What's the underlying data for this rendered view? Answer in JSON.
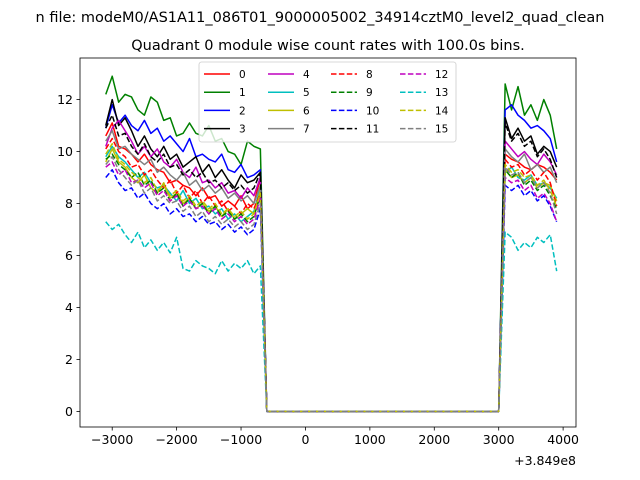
{
  "chart_data": {
    "type": "line",
    "suptitle": "n file: modeM0/AS1A11_086T01_9000005002_34914cztM0_level2_quad_clean",
    "title": "Quadrant 0 module wise count rates with 100.0s bins.",
    "xlabel": "",
    "ylabel": "",
    "x_offset_label": "+3.849e8",
    "xlim": [
      -3500,
      4200
    ],
    "ylim": [
      -0.6,
      13.6
    ],
    "xticks": [
      -3000,
      -2000,
      -1000,
      0,
      1000,
      2000,
      3000,
      4000
    ],
    "xtick_labels": [
      "−3000",
      "−2000",
      "−1000",
      "0",
      "1000",
      "2000",
      "3000",
      "4000"
    ],
    "yticks": [
      0,
      2,
      4,
      6,
      8,
      10,
      12
    ],
    "ytick_labels": [
      "0",
      "2",
      "4",
      "6",
      "8",
      "10",
      "12"
    ],
    "legend_position": "upper center",
    "x": [
      -3100,
      -3000,
      -2900,
      -2800,
      -2700,
      -2600,
      -2500,
      -2400,
      -2300,
      -2200,
      -2100,
      -2000,
      -1900,
      -1800,
      -1700,
      -1600,
      -1500,
      -1400,
      -1300,
      -1200,
      -1100,
      -1000,
      -900,
      -800,
      -700,
      -600,
      -500,
      3000,
      3100,
      3200,
      3300,
      3400,
      3500,
      3600,
      3700,
      3800,
      3900
    ],
    "series": [
      {
        "name": "0",
        "color": "#ff0000",
        "dash": "solid",
        "values": [
          10.6,
          11.1,
          10.2,
          10.1,
          9.9,
          9.6,
          9.9,
          9.5,
          9.3,
          9.2,
          8.8,
          8.9,
          8.7,
          8.6,
          8.3,
          8.6,
          8.2,
          8.3,
          7.9,
          8.1,
          7.9,
          8.3,
          7.8,
          8.0,
          9.0,
          0,
          0,
          0,
          9.9,
          9.7,
          9.6,
          9.4,
          9.3,
          9.5,
          9.4,
          9.2,
          8.9
        ]
      },
      {
        "name": "1",
        "color": "#008000",
        "dash": "solid",
        "values": [
          12.2,
          12.9,
          11.9,
          12.2,
          12.1,
          11.6,
          11.4,
          12.1,
          11.9,
          11.2,
          11.3,
          10.6,
          10.7,
          11.1,
          10.7,
          10.6,
          11.0,
          10.4,
          10.5,
          10.0,
          9.9,
          9.5,
          10.4,
          10.2,
          10.1,
          0,
          0,
          0,
          12.6,
          11.6,
          12.5,
          11.4,
          11.8,
          11.2,
          12.0,
          11.4,
          10.1
        ]
      },
      {
        "name": "2",
        "color": "#0000ff",
        "dash": "solid",
        "values": [
          10.9,
          11.8,
          11.1,
          11.4,
          11.0,
          10.8,
          11.2,
          10.7,
          10.9,
          10.4,
          10.6,
          10.3,
          10.0,
          10.5,
          9.8,
          9.9,
          9.7,
          9.6,
          9.9,
          9.3,
          9.2,
          9.5,
          9.0,
          9.1,
          9.3,
          0,
          0,
          0,
          11.6,
          11.8,
          11.4,
          11.2,
          10.9,
          11.0,
          10.8,
          10.5,
          9.6
        ]
      },
      {
        "name": "3",
        "color": "#000000",
        "dash": "solid",
        "values": [
          11.0,
          12.0,
          11.0,
          11.3,
          10.8,
          10.2,
          10.6,
          10.1,
          9.8,
          10.2,
          9.7,
          9.9,
          9.4,
          9.6,
          9.8,
          9.2,
          9.5,
          9.0,
          9.3,
          8.9,
          8.6,
          9.1,
          8.8,
          8.9,
          9.2,
          0,
          0,
          0,
          11.3,
          10.5,
          10.9,
          10.4,
          10.6,
          9.9,
          10.2,
          10.0,
          9.4
        ]
      },
      {
        "name": "4",
        "color": "#bf00bf",
        "dash": "solid",
        "values": [
          10.2,
          10.9,
          11.2,
          10.8,
          10.4,
          9.9,
          10.2,
          9.8,
          10.1,
          9.6,
          9.4,
          9.7,
          9.2,
          9.0,
          9.4,
          8.8,
          8.9,
          8.6,
          8.8,
          8.4,
          8.5,
          8.2,
          8.6,
          8.3,
          9.0,
          0,
          0,
          0,
          10.4,
          10.1,
          9.8,
          10.0,
          9.7,
          9.5,
          9.9,
          9.6,
          9.1
        ]
      },
      {
        "name": "5",
        "color": "#00bfbf",
        "dash": "solid",
        "values": [
          9.8,
          10.2,
          9.8,
          9.6,
          9.3,
          9.0,
          9.2,
          8.8,
          8.6,
          8.7,
          8.4,
          8.1,
          8.5,
          8.0,
          8.2,
          7.8,
          7.9,
          7.6,
          7.8,
          7.4,
          7.6,
          7.3,
          7.5,
          7.7,
          8.6,
          0,
          0,
          0,
          9.2,
          9.4,
          9.0,
          8.9,
          9.1,
          8.7,
          8.8,
          8.6,
          8.2
        ]
      },
      {
        "name": "6",
        "color": "#bfbf00",
        "dash": "solid",
        "values": [
          9.6,
          10.1,
          9.6,
          9.4,
          9.0,
          8.8,
          9.1,
          8.6,
          8.4,
          8.8,
          8.2,
          8.4,
          8.0,
          8.2,
          7.8,
          8.0,
          7.7,
          7.9,
          7.5,
          7.8,
          7.4,
          7.6,
          7.8,
          7.6,
          8.5,
          0,
          0,
          0,
          9.3,
          9.0,
          9.1,
          8.8,
          9.0,
          8.6,
          8.8,
          8.7,
          8.1
        ]
      },
      {
        "name": "7",
        "color": "#808080",
        "dash": "solid",
        "values": [
          10.4,
          10.8,
          10.1,
          10.2,
          9.9,
          9.7,
          9.5,
          9.7,
          9.2,
          9.4,
          9.1,
          8.9,
          9.2,
          8.7,
          8.9,
          8.5,
          8.7,
          8.4,
          8.6,
          8.2,
          8.4,
          8.1,
          8.3,
          8.0,
          8.7,
          0,
          0,
          0,
          10.1,
          9.8,
          9.6,
          9.9,
          9.3,
          9.5,
          9.2,
          9.4,
          8.8
        ]
      },
      {
        "name": "8",
        "color": "#ff0000",
        "dash": "dashed",
        "values": [
          10.1,
          10.5,
          10.0,
          9.8,
          9.4,
          9.5,
          9.1,
          9.3,
          8.9,
          8.6,
          8.9,
          8.4,
          8.7,
          8.2,
          8.5,
          8.0,
          8.3,
          7.9,
          8.1,
          7.7,
          7.9,
          7.6,
          8.0,
          7.8,
          8.4,
          0,
          0,
          0,
          9.7,
          9.4,
          9.5,
          9.1,
          9.3,
          8.9,
          9.2,
          8.8,
          7.9
        ]
      },
      {
        "name": "9",
        "color": "#008000",
        "dash": "dashed",
        "values": [
          9.7,
          9.9,
          9.5,
          9.3,
          9.0,
          9.2,
          8.7,
          8.9,
          8.4,
          8.6,
          8.1,
          8.4,
          7.9,
          8.2,
          7.8,
          8.0,
          7.6,
          7.9,
          7.5,
          7.7,
          7.4,
          7.6,
          7.3,
          7.5,
          8.3,
          0,
          0,
          0,
          9.3,
          9.0,
          9.2,
          8.7,
          8.9,
          8.5,
          8.7,
          8.3,
          7.8
        ]
      },
      {
        "name": "10",
        "color": "#0000ff",
        "dash": "dashed",
        "values": [
          9.0,
          9.3,
          8.8,
          8.5,
          8.6,
          8.2,
          8.4,
          8.0,
          7.8,
          8.0,
          7.6,
          7.8,
          7.5,
          7.6,
          7.3,
          7.5,
          7.2,
          7.3,
          7.0,
          7.2,
          6.9,
          7.1,
          6.8,
          7.0,
          7.8,
          0,
          0,
          0,
          8.7,
          8.5,
          8.7,
          8.3,
          8.5,
          8.1,
          8.3,
          7.9,
          7.3
        ]
      },
      {
        "name": "11",
        "color": "#000000",
        "dash": "dashed",
        "values": [
          10.9,
          11.4,
          10.6,
          10.7,
          10.2,
          9.9,
          10.3,
          9.8,
          9.6,
          9.9,
          9.4,
          9.5,
          9.1,
          9.3,
          9.0,
          9.2,
          8.8,
          8.9,
          8.6,
          8.8,
          8.5,
          8.7,
          8.4,
          8.6,
          9.2,
          0,
          0,
          0,
          11.1,
          10.4,
          10.7,
          10.2,
          10.4,
          9.8,
          10.1,
          9.7,
          9.0
        ]
      },
      {
        "name": "12",
        "color": "#bf00bf",
        "dash": "dashed",
        "values": [
          9.4,
          9.6,
          9.1,
          9.3,
          8.8,
          8.9,
          8.6,
          8.8,
          8.3,
          8.5,
          8.1,
          8.3,
          7.9,
          8.1,
          7.8,
          7.9,
          7.6,
          7.8,
          7.4,
          7.6,
          7.3,
          7.5,
          7.2,
          7.4,
          8.2,
          0,
          0,
          0,
          9.0,
          8.8,
          8.9,
          8.5,
          8.7,
          8.2,
          8.4,
          8.0,
          7.3
        ]
      },
      {
        "name": "13",
        "color": "#00bfbf",
        "dash": "dashed",
        "values": [
          7.3,
          7.0,
          7.2,
          6.8,
          6.5,
          6.9,
          6.3,
          6.6,
          6.2,
          6.5,
          6.1,
          6.7,
          5.5,
          5.4,
          5.8,
          5.6,
          5.5,
          5.3,
          5.8,
          5.4,
          5.7,
          5.5,
          5.8,
          5.3,
          5.6,
          0,
          0,
          0,
          6.9,
          6.7,
          6.2,
          6.5,
          6.3,
          6.7,
          6.5,
          6.8,
          5.4
        ]
      },
      {
        "name": "14",
        "color": "#bfbf00",
        "dash": "dashed",
        "values": [
          9.9,
          10.3,
          9.7,
          9.5,
          9.2,
          9.0,
          8.8,
          9.0,
          8.5,
          8.7,
          8.3,
          8.5,
          8.1,
          8.3,
          7.9,
          8.1,
          7.8,
          8.0,
          7.6,
          7.8,
          7.5,
          7.7,
          7.4,
          7.6,
          8.4,
          0,
          0,
          0,
          9.5,
          9.2,
          9.3,
          9.0,
          9.1,
          8.7,
          8.9,
          8.5,
          7.9
        ]
      },
      {
        "name": "15",
        "color": "#808080",
        "dash": "dashed",
        "values": [
          9.5,
          9.8,
          9.3,
          9.0,
          8.7,
          8.9,
          8.4,
          8.6,
          8.1,
          8.3,
          8.0,
          8.1,
          7.7,
          7.9,
          7.5,
          7.7,
          7.3,
          7.5,
          7.2,
          7.4,
          7.1,
          7.3,
          7.0,
          7.2,
          8.0,
          0,
          0,
          0,
          9.4,
          9.1,
          9.2,
          8.8,
          9.0,
          8.6,
          8.8,
          8.4,
          7.6
        ]
      }
    ]
  }
}
